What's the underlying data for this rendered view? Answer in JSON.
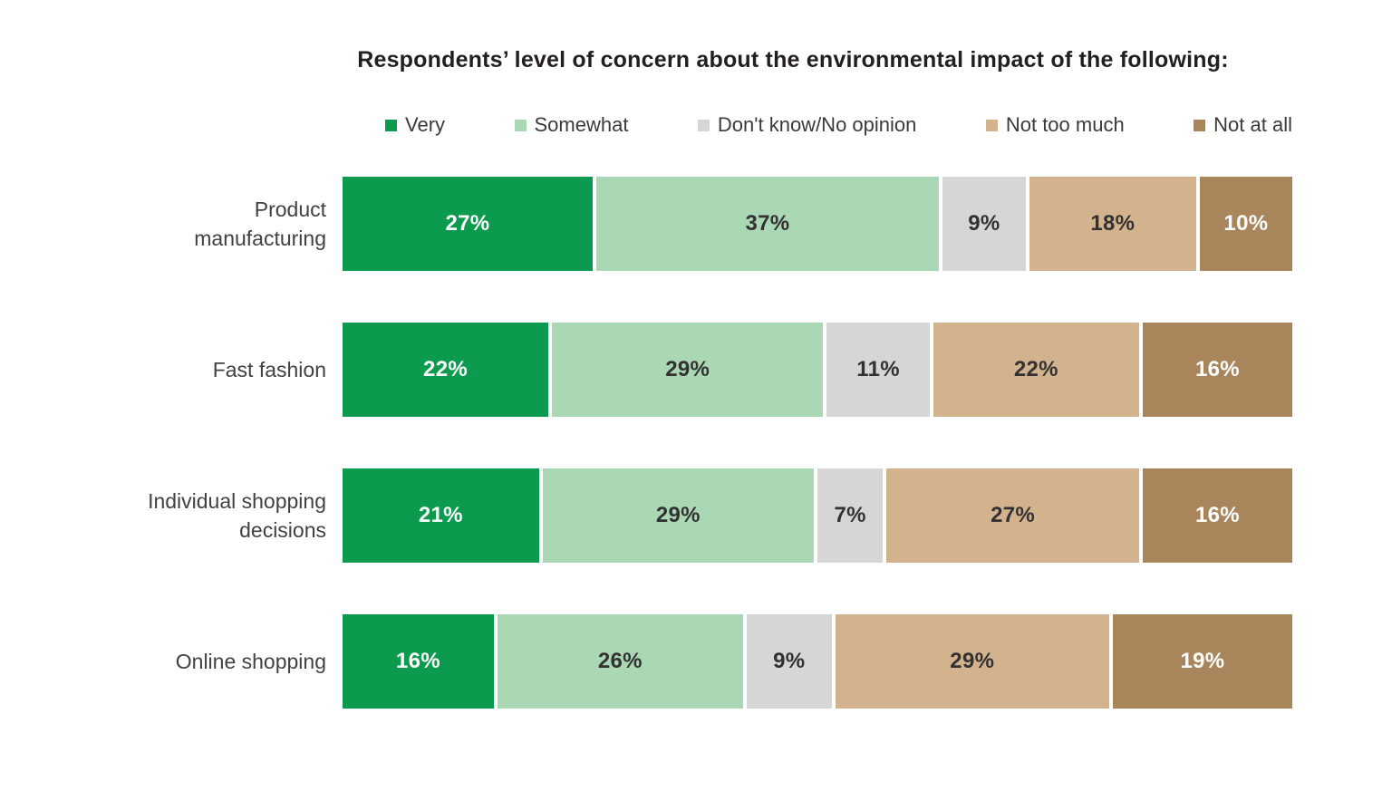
{
  "chart_data": {
    "type": "bar",
    "variant": "stacked",
    "orientation": "horizontal",
    "title": "Respondents’ level of concern about the environmental impact of the following:",
    "legend_position": "top",
    "value_suffix": "%",
    "axis_range": [
      0,
      100
    ],
    "grid": false,
    "categories": [
      "Product manufacturing",
      "Fast fashion",
      "Individual shopping decisions",
      "Online shopping"
    ],
    "categories_display_lines": [
      [
        "Product",
        "manufacturing"
      ],
      [
        "Fast fashion"
      ],
      [
        "Individual shopping",
        "decisions"
      ],
      [
        "Online shopping"
      ]
    ],
    "series": [
      {
        "name": "Very",
        "color": "#0c9b4e",
        "label_color": "#ffffff",
        "values": [
          27,
          22,
          21,
          16
        ]
      },
      {
        "name": "Somewhat",
        "color": "#aad8b5",
        "label_color": "#333132",
        "values": [
          37,
          29,
          29,
          26
        ]
      },
      {
        "name": "Don't know/No opinion",
        "color": "#d6d6d6",
        "label_color": "#333132",
        "values": [
          9,
          11,
          7,
          9
        ]
      },
      {
        "name": "Not too much",
        "color": "#d3b38e",
        "label_color": "#333132",
        "values": [
          18,
          22,
          27,
          29
        ]
      },
      {
        "name": "Not at all",
        "color": "#a9855c",
        "label_color": "#ffffff",
        "values": [
          10,
          16,
          16,
          19
        ]
      }
    ],
    "colors": {
      "title_text": "#231f20",
      "legend_text": "#3b3a39",
      "category_label_text": "#414042",
      "background": "#ffffff"
    }
  }
}
